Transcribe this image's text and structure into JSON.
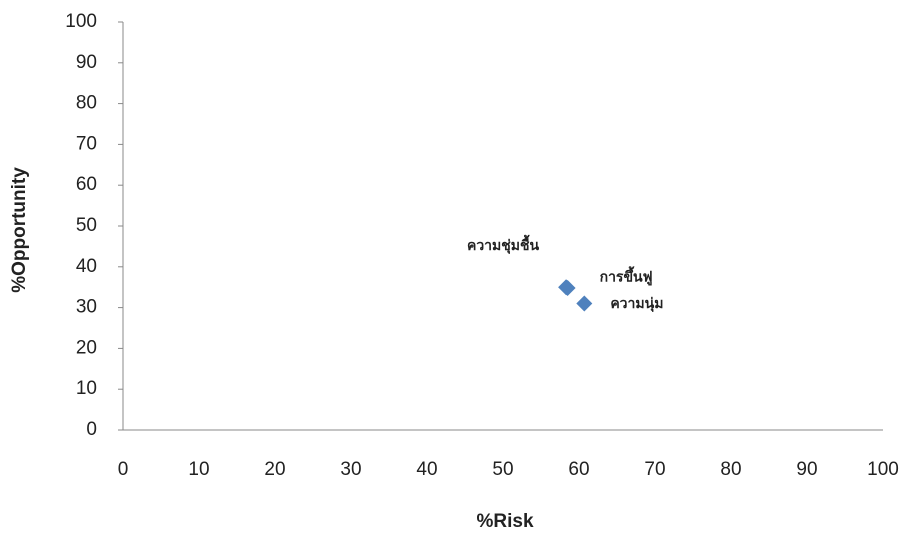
{
  "chart_data": {
    "type": "scatter",
    "x_label": "%Risk",
    "y_label": "%Opportunity",
    "x": [
      58.3,
      58.5,
      60.7
    ],
    "y": [
      35,
      34.8,
      31
    ],
    "point_labels": [
      "ความชุ่มชื้น",
      "การขึ้นฟู",
      "ความนุ่ม"
    ],
    "color": "#4f81bd",
    "xlim": [
      0,
      100
    ],
    "xticks": [
      0,
      10,
      20,
      30,
      40,
      50,
      60,
      70,
      80,
      90,
      100
    ],
    "ylim": [
      0,
      100
    ],
    "yticks": [
      0,
      10,
      20,
      30,
      40,
      50,
      60,
      70,
      80,
      90,
      100
    ],
    "grid": false
  }
}
